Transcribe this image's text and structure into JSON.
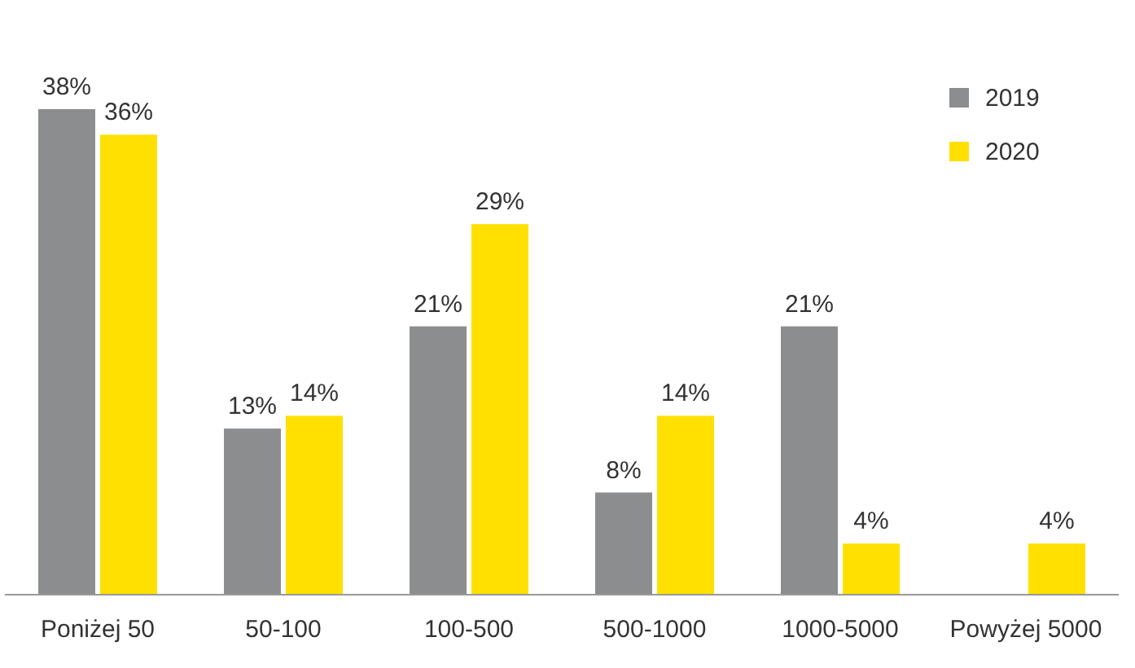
{
  "chart_data": {
    "type": "bar",
    "categories": [
      "Poniżej 50",
      "50-100",
      "100-500",
      "500-1000",
      "1000-5000",
      "Powyżej 5000"
    ],
    "series": [
      {
        "name": "2019",
        "color": "#8b8d8f",
        "values": [
          38,
          13,
          21,
          8,
          21,
          null
        ],
        "value_labels": [
          "38%",
          "13%",
          "21%",
          "8%",
          "21%",
          null
        ]
      },
      {
        "name": "2020",
        "color": "#ffe000",
        "values": [
          36,
          14,
          29,
          14,
          4,
          4
        ],
        "value_labels": [
          "36%",
          "14%",
          "29%",
          "14%",
          "4%",
          "4%"
        ]
      }
    ],
    "legend": "top right"
  }
}
